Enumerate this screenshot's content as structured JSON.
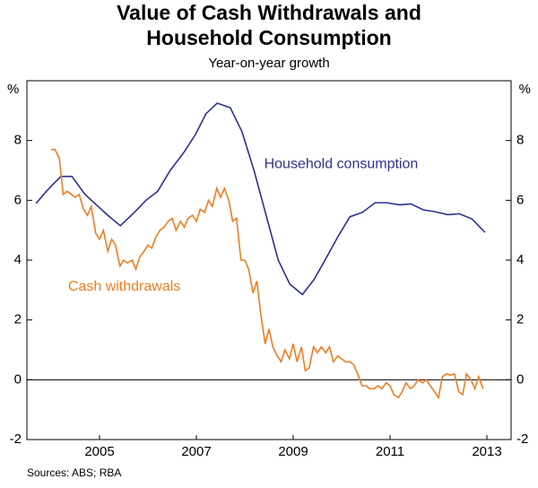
{
  "chart_data": {
    "type": "line",
    "title_lines": [
      "Value of Cash Withdrawals and",
      "Household Consumption"
    ],
    "subtitle": "Year-on-year growth",
    "y_unit": "%",
    "source": "Sources: ABS; RBA",
    "xlim": [
      2004,
      2014
    ],
    "xticks": [
      {
        "value": 2005.5,
        "label": "2005"
      },
      {
        "value": 2007.5,
        "label": "2007"
      },
      {
        "value": 2009.5,
        "label": "2009"
      },
      {
        "value": 2011.5,
        "label": "2011"
      },
      {
        "value": 2013.5,
        "label": "2013"
      }
    ],
    "ylim": [
      -2,
      10
    ],
    "yticks": [
      -2,
      0,
      2,
      4,
      6,
      8
    ],
    "series": [
      {
        "name": "Household consumption",
        "color": "#2e3192",
        "x": [
          2004.19,
          2004.4,
          2004.7,
          2004.93,
          2005.2,
          2005.67,
          2005.93,
          2006.22,
          2006.46,
          2006.7,
          2006.96,
          2007.24,
          2007.48,
          2007.7,
          2007.93,
          2008.2,
          2008.44,
          2008.69,
          2008.94,
          2009.19,
          2009.43,
          2009.69,
          2009.93,
          2010.19,
          2010.43,
          2010.67,
          2010.93,
          2011.19,
          2011.43,
          2011.69,
          2011.93,
          2012.19,
          2012.43,
          2012.69,
          2012.93,
          2013.19,
          2013.46
        ],
        "values": [
          5.9,
          6.3,
          6.8,
          6.8,
          6.2,
          5.5,
          5.15,
          5.6,
          6.0,
          6.3,
          7.0,
          7.6,
          8.2,
          8.9,
          9.25,
          9.1,
          8.3,
          7.0,
          5.5,
          4.0,
          3.2,
          2.85,
          3.35,
          4.1,
          4.8,
          5.45,
          5.6,
          5.92,
          5.92,
          5.85,
          5.88,
          5.68,
          5.62,
          5.52,
          5.55,
          5.38,
          4.93
        ]
      },
      {
        "name": "Cash withdrawals",
        "color": "#f47b20",
        "x": [
          2004.5,
          2004.58,
          2004.67,
          2004.75,
          2004.83,
          2004.92,
          2005.0,
          2005.08,
          2005.17,
          2005.25,
          2005.33,
          2005.42,
          2005.5,
          2005.58,
          2005.67,
          2005.75,
          2005.83,
          2005.92,
          2006.0,
          2006.08,
          2006.17,
          2006.25,
          2006.33,
          2006.42,
          2006.5,
          2006.58,
          2006.67,
          2006.75,
          2006.83,
          2006.92,
          2007.0,
          2007.08,
          2007.17,
          2007.25,
          2007.33,
          2007.42,
          2007.5,
          2007.58,
          2007.67,
          2007.75,
          2007.83,
          2007.92,
          2008.0,
          2008.08,
          2008.17,
          2008.25,
          2008.33,
          2008.42,
          2008.5,
          2008.58,
          2008.67,
          2008.75,
          2008.83,
          2008.92,
          2009.0,
          2009.08,
          2009.17,
          2009.25,
          2009.33,
          2009.42,
          2009.5,
          2009.58,
          2009.67,
          2009.75,
          2009.83,
          2009.92,
          2010.0,
          2010.08,
          2010.17,
          2010.25,
          2010.33,
          2010.42,
          2010.5,
          2010.58,
          2010.67,
          2010.75,
          2010.83,
          2010.92,
          2011.0,
          2011.08,
          2011.17,
          2011.25,
          2011.33,
          2011.42,
          2011.5,
          2011.58,
          2011.67,
          2011.75,
          2011.83,
          2011.92,
          2012.0,
          2012.08,
          2012.17,
          2012.25,
          2012.33,
          2012.42,
          2012.5,
          2012.58,
          2012.67,
          2012.75,
          2012.83,
          2012.92,
          2013.0,
          2013.08,
          2013.17,
          2013.25,
          2013.33,
          2013.42
        ],
        "values": [
          7.7,
          7.7,
          7.4,
          6.2,
          6.3,
          6.2,
          6.1,
          6.2,
          5.7,
          5.5,
          5.8,
          4.9,
          4.7,
          5.0,
          4.3,
          4.7,
          4.5,
          3.8,
          4.0,
          3.9,
          4.0,
          3.7,
          4.1,
          4.3,
          4.5,
          4.4,
          4.8,
          5.0,
          5.1,
          5.3,
          5.4,
          5.0,
          5.3,
          5.1,
          5.4,
          5.5,
          5.3,
          5.7,
          5.6,
          6.0,
          5.8,
          6.4,
          6.1,
          6.4,
          6.0,
          5.3,
          5.4,
          4.0,
          4.0,
          3.7,
          2.9,
          3.3,
          2.2,
          1.2,
          1.7,
          1.1,
          0.8,
          0.6,
          1.0,
          0.7,
          1.2,
          0.6,
          1.1,
          0.3,
          0.4,
          1.1,
          0.9,
          1.1,
          0.9,
          1.1,
          0.6,
          0.8,
          0.7,
          0.6,
          0.6,
          0.5,
          0.2,
          -0.2,
          -0.2,
          -0.3,
          -0.3,
          -0.2,
          -0.3,
          -0.1,
          -0.2,
          -0.5,
          -0.6,
          -0.4,
          -0.1,
          -0.3,
          -0.2,
          0.0,
          -0.1,
          0.0,
          -0.2,
          -0.4,
          -0.6,
          0.1,
          0.2,
          0.15,
          0.2,
          -0.4,
          -0.5,
          0.2,
          0.0,
          -0.3,
          0.1,
          -0.3
        ]
      }
    ],
    "annotations": [
      {
        "text": "Household consumption",
        "x": 2008.9,
        "y": 7.2,
        "series": 0
      },
      {
        "text": "Cash withdrawals",
        "x": 2004.85,
        "y": 3.1,
        "series": 1
      }
    ]
  }
}
